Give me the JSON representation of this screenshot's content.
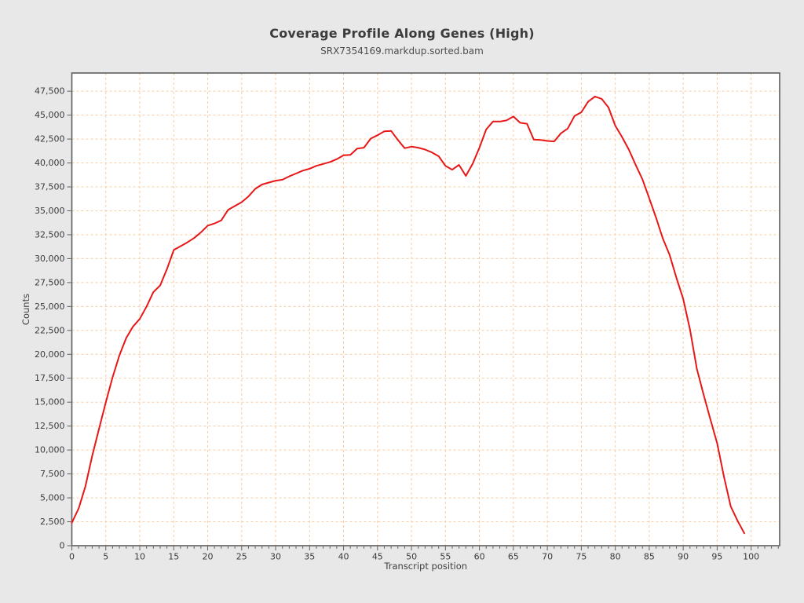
{
  "page": {
    "background": "#e8e8e8"
  },
  "header": {
    "title": "Coverage Profile Along Genes (High)",
    "subtitle": "SRX7354169.markdup.sorted.bam"
  },
  "chart_data": {
    "type": "line",
    "title": "Coverage Profile Along Genes (High)",
    "subtitle": "SRX7354169.markdup.sorted.bam",
    "xlabel": "Transcript position",
    "ylabel": "Counts",
    "xlim": [
      0,
      104.2
    ],
    "ylim": [
      0,
      49400
    ],
    "x_major_tick": 5,
    "x_minor_tick": 1,
    "y_major_tick": 2500,
    "grid": true,
    "legend": "none",
    "x_tick_labels": [
      "0",
      "5",
      "10",
      "15",
      "20",
      "25",
      "30",
      "35",
      "40",
      "45",
      "50",
      "55",
      "60",
      "65",
      "70",
      "75",
      "80",
      "85",
      "90",
      "95",
      "100"
    ],
    "y_tick_labels": [
      "0",
      "2,500",
      "5,000",
      "7,500",
      "10,000",
      "12,500",
      "15,000",
      "17,500",
      "20,000",
      "22,500",
      "25,000",
      "27,500",
      "30,000",
      "32,500",
      "35,000",
      "37,500",
      "40,000",
      "42,500",
      "45,000",
      "47,500"
    ],
    "series": [
      {
        "name": "SRX7354169.markdup.sorted.bam",
        "color": "#e81717",
        "x_start": 0,
        "x_step": 1,
        "values": [
          2400,
          3900,
          6200,
          9400,
          12200,
          15000,
          17600,
          19900,
          21700,
          22900,
          23700,
          25000,
          26500,
          27200,
          28900,
          30900,
          31300,
          31700,
          32150,
          32750,
          33450,
          33680,
          34000,
          35100,
          35500,
          35900,
          36500,
          37300,
          37750,
          37950,
          38150,
          38250,
          38600,
          38900,
          39200,
          39400,
          39700,
          39900,
          40100,
          40400,
          40800,
          40850,
          41500,
          41600,
          42550,
          42900,
          43300,
          43350,
          42400,
          41550,
          41700,
          41600,
          41400,
          41100,
          40700,
          39700,
          39300,
          39800,
          38650,
          39900,
          41600,
          43500,
          44330,
          44330,
          44450,
          44850,
          44200,
          44100,
          42450,
          42400,
          42300,
          42250,
          43100,
          43600,
          44900,
          45300,
          46400,
          46950,
          46700,
          45800,
          43900,
          42700,
          41400,
          39800,
          38300,
          36300,
          34300,
          32100,
          30400,
          28000,
          25800,
          22600,
          18500,
          15800,
          13200,
          10700,
          7200,
          4100,
          2600,
          1300
        ]
      }
    ],
    "colors": {
      "plot_bg": "#ffffff",
      "frame": "#5e5e5e",
      "grid": "#f7cca3",
      "line": "#e81717",
      "tick_text": "#3b3b3b"
    }
  }
}
